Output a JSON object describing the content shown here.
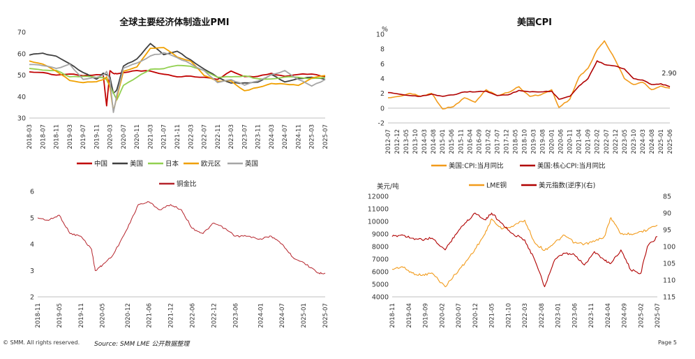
{
  "footer": {
    "copyright": "© SMM. All rights reserved.",
    "source": "Source: SMM  LME 公开数据整理",
    "page": "Page 5"
  },
  "colors": {
    "red": "#c00000",
    "dark": "#404040",
    "green": "#92d050",
    "orange": "#f0a000",
    "gray": "#a6a6a6",
    "cpi_orange": "#f29b1b",
    "lme_orange": "#f29b1b",
    "usd_red": "#b00000",
    "ratio_red": "#b5232b"
  },
  "chart_data": [
    {
      "id": "pmi",
      "type": "line",
      "title": "全球主要经济体制造业PMI",
      "ylim": [
        30,
        70
      ],
      "yticks": [
        30,
        40,
        50,
        60,
        70
      ],
      "xticks": [
        "2018-03",
        "2018-07",
        "2018-11",
        "2019-03",
        "2019-07",
        "2019-11",
        "2020-03",
        "2020-07",
        "2020-11",
        "2021-03",
        "2021-07",
        "2021-11",
        "2022-03",
        "2022-07",
        "2022-11",
        "2023-03",
        "2023-07",
        "2023-11",
        "2024-03",
        "2024-07",
        "2024-11",
        "2025-03",
        "2025-07"
      ],
      "x": [
        "2018-03",
        "2018-07",
        "2018-11",
        "2019-03",
        "2019-07",
        "2019-11",
        "2020-01",
        "2020-02",
        "2020-03",
        "2020-04",
        "2020-05",
        "2020-07",
        "2020-11",
        "2021-03",
        "2021-07",
        "2021-11",
        "2022-03",
        "2022-07",
        "2022-11",
        "2023-03",
        "2023-07",
        "2023-11",
        "2024-03",
        "2024-07",
        "2024-11",
        "2025-03",
        "2025-07"
      ],
      "series": [
        {
          "name": "中国",
          "color": "#c00000",
          "values": [
            51.5,
            51.2,
            50.0,
            50.5,
            49.7,
            50.2,
            50.0,
            35.7,
            52.0,
            50.8,
            50.6,
            51.1,
            52.1,
            51.9,
            50.4,
            49.2,
            49.5,
            49.0,
            48.0,
            51.9,
            49.3,
            49.4,
            50.8,
            49.4,
            50.3,
            50.5,
            49.3
          ]
        },
        {
          "name": "美国",
          "color": "#404040",
          "values": [
            59.3,
            60.2,
            58.8,
            55.3,
            51.2,
            48.1,
            50.9,
            50.1,
            49.1,
            41.5,
            43.1,
            54.2,
            57.5,
            64.7,
            59.5,
            61.1,
            57.1,
            52.8,
            49.0,
            46.3,
            46.4,
            46.7,
            50.3,
            46.8,
            48.4,
            49.0,
            48.0
          ]
        },
        {
          "name": "日本",
          "color": "#92d050",
          "values": [
            53.1,
            52.3,
            52.2,
            49.2,
            49.4,
            48.9,
            48.8,
            47.8,
            44.8,
            41.9,
            38.4,
            45.2,
            49.0,
            52.7,
            53.0,
            54.5,
            54.1,
            52.1,
            49.0,
            49.2,
            49.6,
            48.3,
            48.2,
            49.1,
            49.0,
            48.4,
            48.9
          ]
        },
        {
          "name": "欧元区",
          "color": "#f0a000",
          "values": [
            56.6,
            55.1,
            51.8,
            47.5,
            46.5,
            46.9,
            47.9,
            49.2,
            44.5,
            33.4,
            39.4,
            51.8,
            53.8,
            62.5,
            62.8,
            58.4,
            56.5,
            49.8,
            47.1,
            47.3,
            42.7,
            44.2,
            46.1,
            45.8,
            45.2,
            48.6,
            49.8
          ]
        },
        {
          "name": "英国",
          "color": "#a6a6a6",
          "values": [
            54.9,
            54.4,
            53.1,
            55.1,
            48.0,
            48.9,
            50.0,
            51.7,
            47.8,
            32.6,
            40.7,
            53.3,
            55.6,
            58.9,
            60.4,
            58.1,
            55.2,
            52.1,
            46.5,
            47.9,
            45.3,
            47.2,
            50.3,
            52.1,
            48.0,
            44.9,
            48.0
          ]
        }
      ]
    },
    {
      "id": "cpi",
      "type": "line",
      "title": "美国CPI",
      "ylabel": "%",
      "ylim": [
        -2,
        10
      ],
      "yticks": [
        -2,
        0,
        2,
        4,
        6,
        8,
        10
      ],
      "annotation": "2.90",
      "xticks": [
        "2012-07",
        "2012-12",
        "2013-05",
        "2013-10",
        "2014-03",
        "2014-08",
        "2015-01",
        "2015-06",
        "2015-11",
        "2016-04",
        "2016-09",
        "2017-02",
        "2017-07",
        "2017-12",
        "2018-05",
        "2018-10",
        "2019-03",
        "2019-08",
        "2020-01",
        "2020-06",
        "2020-11",
        "2021-04",
        "2021-09",
        "2022-02",
        "2022-07",
        "2022-12",
        "2023-05",
        "2023-10",
        "2024-03",
        "2024-08",
        "2025-01",
        "2025-06"
      ],
      "x": [
        "2012-07",
        "2013-01",
        "2013-07",
        "2014-01",
        "2014-07",
        "2015-01",
        "2015-07",
        "2016-01",
        "2016-07",
        "2017-01",
        "2017-07",
        "2018-01",
        "2018-07",
        "2019-01",
        "2019-07",
        "2020-01",
        "2020-05",
        "2020-11",
        "2021-04",
        "2021-09",
        "2022-02",
        "2022-06",
        "2022-12",
        "2023-05",
        "2023-10",
        "2024-03",
        "2024-08",
        "2025-01",
        "2025-06"
      ],
      "series": [
        {
          "name": "美国:CPI:当月同比",
          "color": "#f29b1b",
          "values": [
            1.4,
            1.6,
            2.0,
            1.6,
            2.0,
            -0.1,
            0.2,
            1.4,
            0.8,
            2.5,
            1.7,
            2.1,
            2.9,
            1.6,
            1.8,
            2.5,
            0.1,
            1.2,
            4.2,
            5.4,
            7.9,
            9.1,
            6.5,
            4.0,
            3.2,
            3.5,
            2.5,
            3.0,
            2.7
          ]
        },
        {
          "name": "美国:核心CPI:当月同比",
          "color": "#b00000",
          "values": [
            2.1,
            1.9,
            1.7,
            1.6,
            1.9,
            1.6,
            1.8,
            2.2,
            2.2,
            2.3,
            1.7,
            1.8,
            2.4,
            2.2,
            2.2,
            2.3,
            1.2,
            1.6,
            3.0,
            4.0,
            6.4,
            5.9,
            5.7,
            5.3,
            4.0,
            3.8,
            3.2,
            3.3,
            2.9
          ]
        }
      ]
    },
    {
      "id": "ratio",
      "type": "line",
      "title": "",
      "legend": "铜金比",
      "ylim": [
        2,
        6
      ],
      "yticks": [
        2,
        3,
        4,
        5,
        6
      ],
      "xticks": [
        "2018-11",
        "2019-05",
        "2019-11",
        "2020-05",
        "2020-12",
        "2021-06",
        "2021-12",
        "2022-06",
        "2022-12",
        "2023-06",
        "2024-01",
        "2024-07",
        "2025-01",
        "2025-07"
      ],
      "x": [
        "2018-11",
        "2019-02",
        "2019-05",
        "2019-08",
        "2019-11",
        "2020-02",
        "2020-03",
        "2020-05",
        "2020-08",
        "2020-12",
        "2021-03",
        "2021-06",
        "2021-09",
        "2021-12",
        "2022-03",
        "2022-06",
        "2022-09",
        "2022-12",
        "2023-03",
        "2023-06",
        "2023-09",
        "2024-01",
        "2024-04",
        "2024-07",
        "2024-10",
        "2025-01",
        "2025-03",
        "2025-05",
        "2025-07"
      ],
      "series": [
        {
          "name": "铜金比",
          "color": "#b5232b",
          "values": [
            5.0,
            4.9,
            5.1,
            4.4,
            4.3,
            3.8,
            3.0,
            3.2,
            3.6,
            4.6,
            5.5,
            5.6,
            5.3,
            5.5,
            5.3,
            4.6,
            4.4,
            4.8,
            4.6,
            4.3,
            4.3,
            4.2,
            4.3,
            4.0,
            3.5,
            3.3,
            3.1,
            2.9,
            2.9
          ]
        }
      ]
    },
    {
      "id": "lme",
      "type": "line",
      "title": "",
      "ylabel": "美元/吨",
      "ylim": [
        4000,
        12000
      ],
      "yticks": [
        4000,
        5000,
        6000,
        7000,
        8000,
        9000,
        10000,
        11000,
        12000
      ],
      "y2lim": [
        115,
        85
      ],
      "y2ticks": [
        85,
        90,
        95,
        100,
        105,
        110,
        115
      ],
      "xticks": [
        "2018-11",
        "2019-04",
        "2019-09",
        "2020-02",
        "2020-07",
        "2020-12",
        "2021-05",
        "2021-10",
        "2022-03",
        "2022-08",
        "2023-01",
        "2023-06",
        "2023-11",
        "2024-04",
        "2024-09",
        "2025-02",
        "2025-07"
      ],
      "x": [
        "2018-11",
        "2019-02",
        "2019-05",
        "2019-08",
        "2019-11",
        "2020-03",
        "2020-06",
        "2020-09",
        "2020-12",
        "2021-03",
        "2021-05",
        "2021-08",
        "2021-11",
        "2022-03",
        "2022-06",
        "2022-09",
        "2022-12",
        "2023-03",
        "2023-06",
        "2023-09",
        "2023-12",
        "2024-03",
        "2024-05",
        "2024-08",
        "2024-11",
        "2025-02",
        "2025-04",
        "2025-07"
      ],
      "series": [
        {
          "name": "LME铜",
          "color": "#f29b1b",
          "axis": "left",
          "values": [
            6200,
            6400,
            5900,
            5700,
            5900,
            4800,
            5800,
            6700,
            7800,
            9000,
            10200,
            9400,
            9600,
            10100,
            8300,
            7700,
            8300,
            8900,
            8300,
            8200,
            8400,
            8800,
            10300,
            9000,
            9000,
            9200,
            9300,
            9700
          ]
        },
        {
          "name": "美元指数(逆序)(右)",
          "color": "#b00000",
          "axis": "right",
          "values": [
            97,
            96.5,
            97.5,
            98,
            97.5,
            101,
            96.5,
            93,
            90,
            92,
            90,
            93,
            96,
            98,
            104,
            112,
            104,
            102,
            102.5,
            105.5,
            101.5,
            104,
            105,
            101,
            107,
            108,
            100,
            97
          ]
        }
      ]
    }
  ]
}
